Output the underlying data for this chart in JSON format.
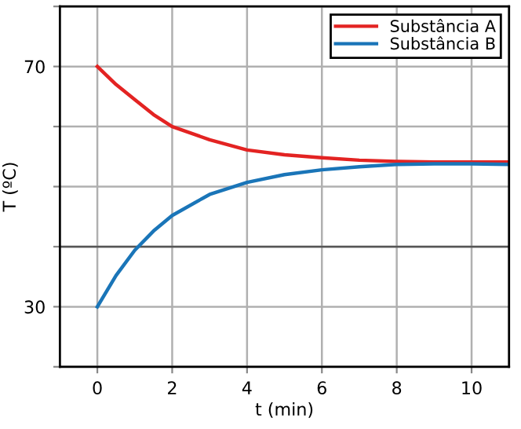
{
  "chart_data": {
    "type": "line",
    "xlabel": "t (min)",
    "ylabel": "T (ºC)",
    "xlim": [
      -1,
      11
    ],
    "xticks": [
      0,
      2,
      4,
      6,
      8,
      10
    ],
    "ylim": [
      20,
      80
    ],
    "yticks": [
      {
        "value": 20,
        "label": null
      },
      30,
      {
        "value": 40,
        "label": null
      },
      {
        "value": 50,
        "label": null
      },
      {
        "value": 60,
        "label": null
      },
      70,
      {
        "value": 80,
        "label": null
      }
    ],
    "grid": true,
    "legend": "top right",
    "marker": "none",
    "line_style": "solid",
    "ref_lines": [
      {
        "axis": "y",
        "value": 40,
        "color": "#555555"
      }
    ],
    "series": [
      {
        "name": "Substância A",
        "color": "#e32322",
        "x": [
          0,
          0.5,
          1,
          1.5,
          2,
          3,
          4,
          5,
          6,
          7,
          8,
          9,
          10,
          11
        ],
        "values": [
          70,
          67,
          64.5,
          62,
          60,
          57.8,
          56.1,
          55.3,
          54.8,
          54.4,
          54.2,
          54.1,
          54.1,
          54.1
        ]
      },
      {
        "name": "Substância B",
        "color": "#1a75b8",
        "x": [
          0,
          0.5,
          1,
          1.5,
          2,
          3,
          4,
          5,
          6,
          7,
          8,
          9,
          10,
          11
        ],
        "values": [
          30,
          35.2,
          39.4,
          42.6,
          45.2,
          48.7,
          50.7,
          52,
          52.8,
          53.3,
          53.7,
          53.8,
          53.8,
          53.7
        ]
      }
    ]
  }
}
